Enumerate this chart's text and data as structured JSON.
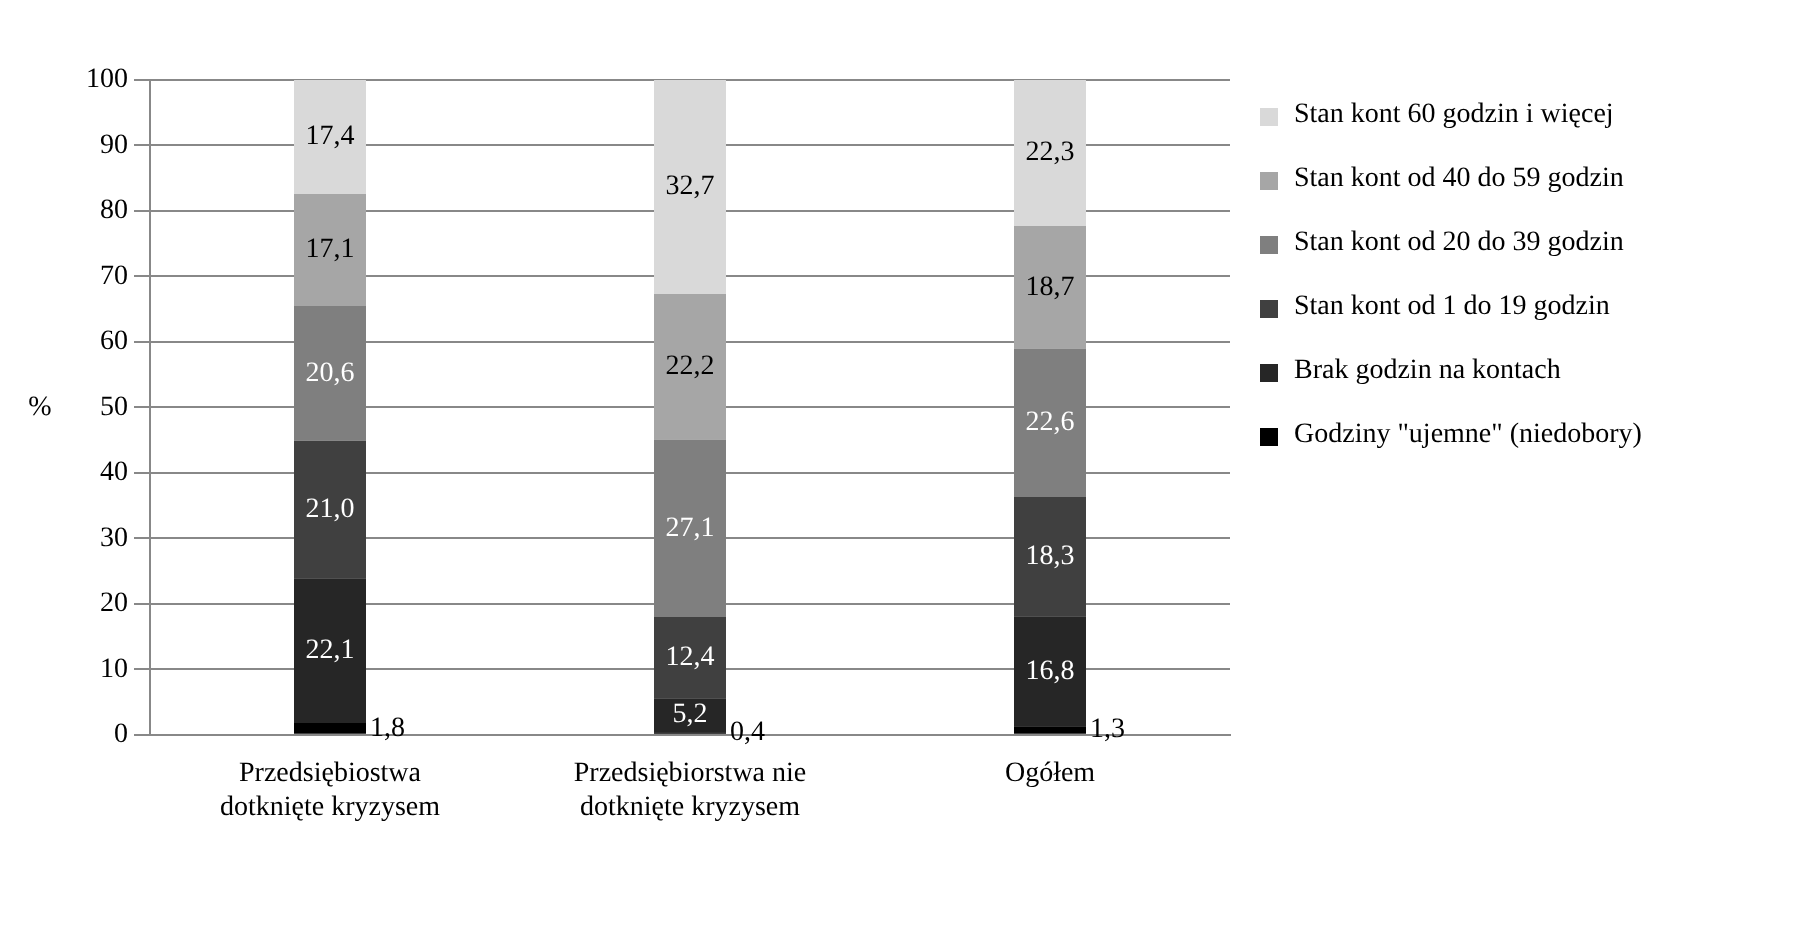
{
  "chart_data": {
    "type": "bar",
    "stacked": true,
    "ylabel": "%",
    "categories": [
      "Przedsiębiostwa dotknięte kryzysem",
      "Przedsiębiorstwa nie dotknięte kryzysem",
      "Ogółem"
    ],
    "ylim": [
      0,
      100
    ],
    "yticks": [
      0,
      10,
      20,
      30,
      40,
      50,
      60,
      70,
      80,
      90,
      100
    ],
    "grid": "y",
    "legend": "right",
    "series": [
      {
        "name": "Godziny \"ujemne\" (niedobory)",
        "color": "#000000",
        "values": [
          1.8,
          0.4,
          1.3
        ],
        "value_labels": [
          "1,8",
          "0,4",
          "1,3"
        ]
      },
      {
        "name": "Brak godzin na kontach",
        "color": "#262626",
        "values": [
          22.1,
          5.2,
          16.8
        ],
        "value_labels": [
          "22,1",
          "5,2",
          "16,8"
        ]
      },
      {
        "name": "Stan kont od 1 do 19 godzin",
        "color": "#404040",
        "values": [
          21.0,
          12.4,
          18.3
        ],
        "value_labels": [
          "21,0",
          "12,4",
          "18,3"
        ]
      },
      {
        "name": "Stan kont od 20 do 39 godzin",
        "color": "#7f7f7f",
        "values": [
          20.6,
          27.1,
          22.6
        ],
        "value_labels": [
          "20,6",
          "27,1",
          "22,6"
        ]
      },
      {
        "name": "Stan kont od 40 do 59 godzin",
        "color": "#a6a6a6",
        "values": [
          17.1,
          22.2,
          18.7
        ],
        "value_labels": [
          "17,1",
          "22,2",
          "18,7"
        ]
      },
      {
        "name": "Stan kont 60 godzin i więcej",
        "color": "#d9d9d9",
        "values": [
          17.4,
          32.7,
          22.3
        ],
        "value_labels": [
          "17,4",
          "32,7",
          "22,3"
        ]
      }
    ]
  }
}
